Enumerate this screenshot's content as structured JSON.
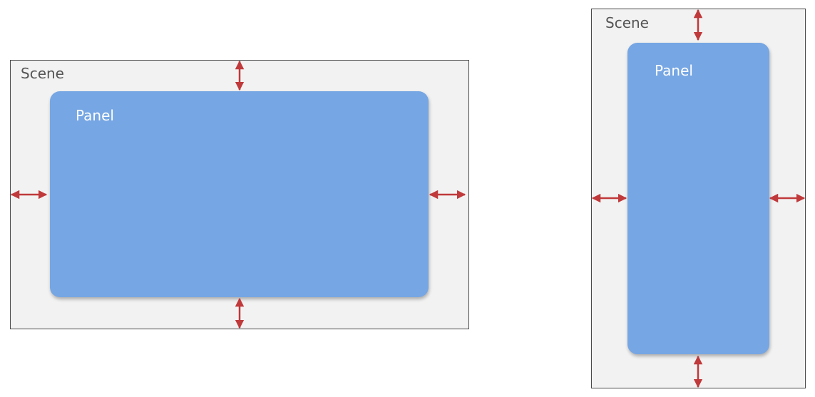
{
  "colors": {
    "scene_fill": "#f2f2f2",
    "scene_border": "#4a4a4a",
    "panel_fill": "#76a6e3",
    "arrow": "#c0393b",
    "scene_text": "#555555",
    "panel_text": "#ffffff"
  },
  "landscape": {
    "scene_label": "Scene",
    "panel_label": "Panel"
  },
  "portrait": {
    "scene_label": "Scene",
    "panel_label": "Panel"
  }
}
